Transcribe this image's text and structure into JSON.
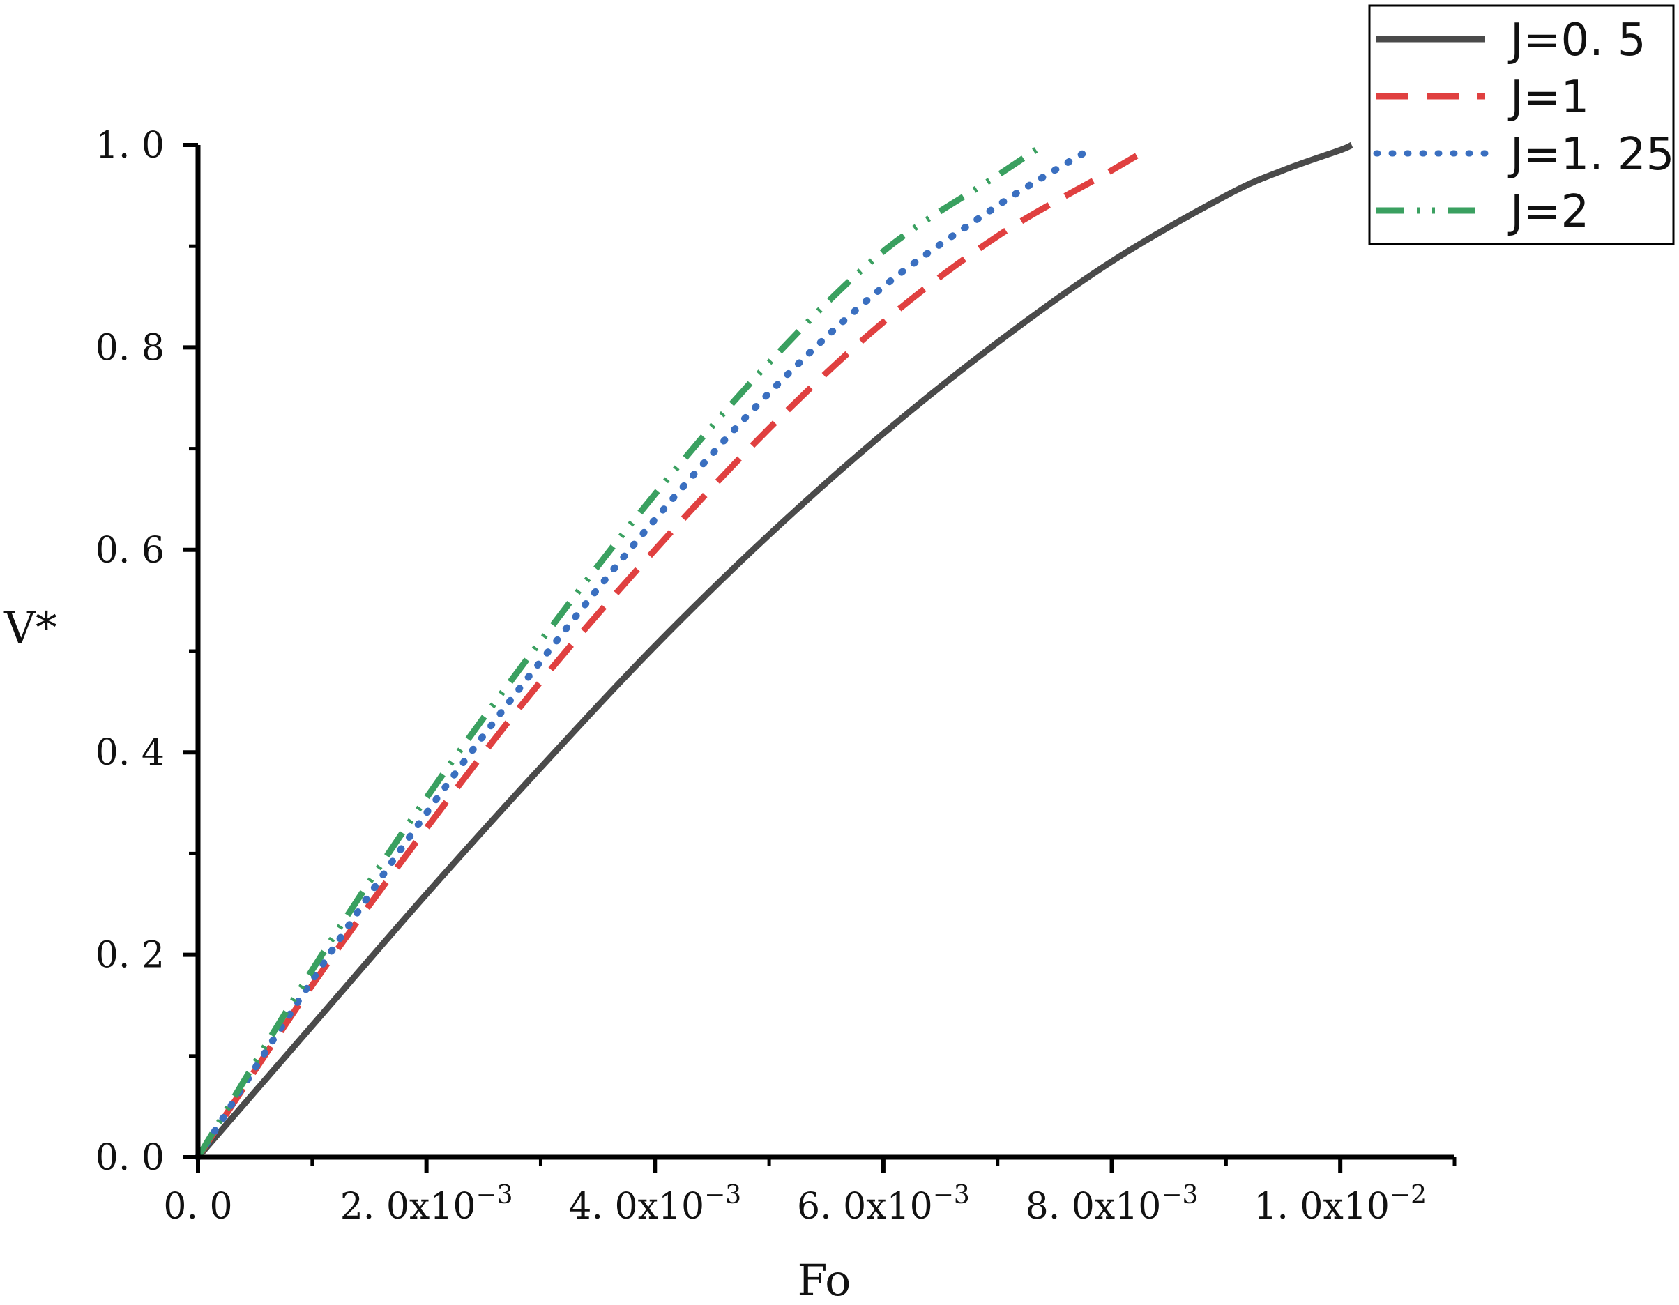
{
  "chart_data": {
    "type": "line",
    "xlabel": "Fo",
    "ylabel": "V*",
    "xlim": [
      0,
      0.011
    ],
    "ylim": [
      0,
      1.0
    ],
    "x_ticks": [
      {
        "value": 0,
        "mantissa": "0. 0",
        "exponent": ""
      },
      {
        "value": 0.002,
        "mantissa": "2. 0x10",
        "exponent": "−3"
      },
      {
        "value": 0.004,
        "mantissa": "4. 0x10",
        "exponent": "−3"
      },
      {
        "value": 0.006,
        "mantissa": "6. 0x10",
        "exponent": "−3"
      },
      {
        "value": 0.008,
        "mantissa": "8. 0x10",
        "exponent": "−3"
      },
      {
        "value": 0.01,
        "mantissa": "1. 0x10",
        "exponent": "−2"
      }
    ],
    "x_minor_ticks": [
      0.001,
      0.003,
      0.005,
      0.007,
      0.009,
      0.011
    ],
    "y_ticks": [
      {
        "value": 0.0,
        "label": "0. 0"
      },
      {
        "value": 0.2,
        "label": "0. 2"
      },
      {
        "value": 0.4,
        "label": "0. 4"
      },
      {
        "value": 0.6,
        "label": "0. 6"
      },
      {
        "value": 0.8,
        "label": "0. 8"
      },
      {
        "value": 1.0,
        "label": "1. 0"
      }
    ],
    "y_minor_ticks": [
      0.1,
      0.3,
      0.5,
      0.7,
      0.9
    ],
    "grid": false,
    "legend_position": "top-right",
    "series": [
      {
        "name": "J=0. 5",
        "color": "#4a4a4a",
        "style": "solid",
        "x": [
          0,
          0.001,
          0.002,
          0.003,
          0.004,
          0.005,
          0.006,
          0.007,
          0.008,
          0.009,
          0.0095,
          0.01,
          0.0101
        ],
        "y": [
          0,
          0.13,
          0.26,
          0.385,
          0.505,
          0.615,
          0.715,
          0.805,
          0.885,
          0.95,
          0.975,
          0.995,
          1.0
        ]
      },
      {
        "name": "J=1",
        "color": "#e04040",
        "style": "dashed",
        "x": [
          0,
          0.001,
          0.002,
          0.003,
          0.004,
          0.005,
          0.006,
          0.007,
          0.008,
          0.0083
        ],
        "y": [
          0,
          0.17,
          0.325,
          0.47,
          0.6,
          0.72,
          0.825,
          0.91,
          0.975,
          0.995
        ]
      },
      {
        "name": "J=1. 25",
        "color": "#3a6fc0",
        "style": "dotted",
        "x": [
          0,
          0.001,
          0.002,
          0.003,
          0.004,
          0.005,
          0.006,
          0.007,
          0.0075,
          0.0078
        ],
        "y": [
          0,
          0.175,
          0.34,
          0.49,
          0.63,
          0.755,
          0.86,
          0.94,
          0.975,
          0.995
        ]
      },
      {
        "name": "J=2",
        "color": "#3aa060",
        "style": "dashdotdot",
        "x": [
          0,
          0.001,
          0.002,
          0.003,
          0.004,
          0.005,
          0.006,
          0.007,
          0.0074
        ],
        "y": [
          0,
          0.185,
          0.355,
          0.51,
          0.655,
          0.785,
          0.895,
          0.97,
          1.0
        ]
      }
    ]
  }
}
